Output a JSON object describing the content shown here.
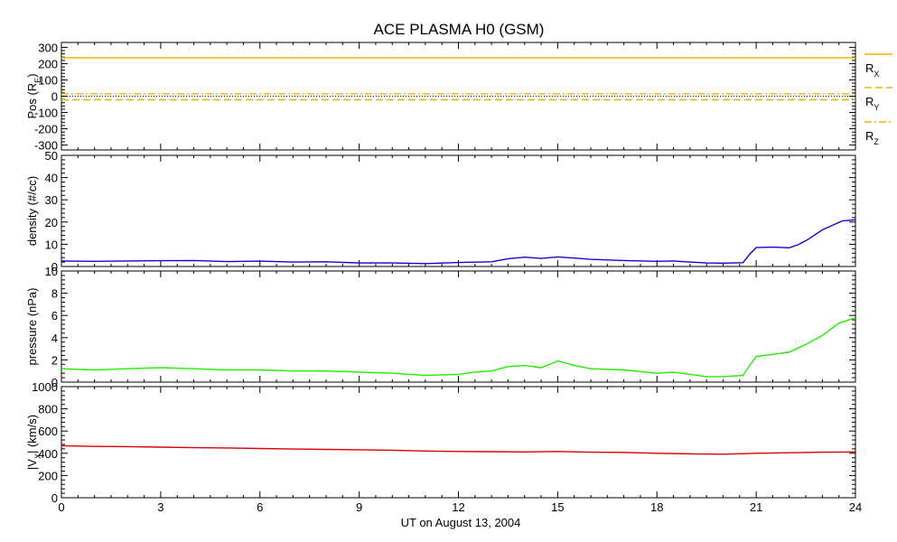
{
  "chart_data": {
    "type": "line",
    "title": "ACE PLASMA H0 (GSM)",
    "xlabel": "UT on August 13, 2004",
    "xlim": [
      0,
      24
    ],
    "xticks": [
      0,
      3,
      6,
      9,
      12,
      15,
      18,
      21,
      24
    ],
    "xtick_labels": [
      "0",
      "3",
      "6",
      "9",
      "12",
      "15",
      "18",
      "21",
      "24"
    ],
    "panels": [
      {
        "ylabel_main": "Pos (R",
        "ylabel_sub": "E",
        "ylabel_end": ")",
        "ylim": [
          -330,
          330
        ],
        "yticks": [
          300,
          200,
          100,
          0,
          -100,
          -200,
          -300
        ],
        "ytick_labels": [
          "300",
          "200",
          "100",
          "0",
          "-100",
          "-200",
          "-300"
        ],
        "zero_line": true,
        "series": [
          {
            "name": "R",
            "sub": "X",
            "color": "#f0b000",
            "dash": "",
            "x": [
              0,
              24
            ],
            "values": [
              236,
              236
            ]
          },
          {
            "name": "R",
            "sub": "Y",
            "color": "#f0b000",
            "dash": "8,4",
            "x": [
              0,
              24
            ],
            "values": [
              -22,
              -22
            ]
          },
          {
            "name": "R",
            "sub": "Z",
            "color": "#f0b000",
            "dash": "8,3,2,3",
            "x": [
              0,
              24
            ],
            "values": [
              15,
              15
            ]
          }
        ]
      },
      {
        "ylabel_main": "density (#/cc)",
        "ylim": [
          0,
          50
        ],
        "yticks": [
          0,
          10,
          20,
          30,
          40,
          50
        ],
        "ytick_labels": [
          "0",
          "10",
          "20",
          "30",
          "40",
          "50"
        ],
        "series": [
          {
            "color": "#1f00cc",
            "x": [
              0,
              1,
              2,
              3,
              4,
              5,
              6,
              7,
              8,
              9,
              10,
              11,
              12,
              13,
              13.5,
              14,
              14.5,
              15,
              15.5,
              16,
              17,
              18,
              18.5,
              19,
              19.5,
              20,
              20.6,
              20.8,
              21,
              21.5,
              22,
              22.3,
              22.6,
              23,
              23.3,
              23.6,
              24
            ],
            "values": [
              2.5,
              2.3,
              2.5,
              2.6,
              2.7,
              2.2,
              2.4,
              2.0,
              2.1,
              1.6,
              1.6,
              1.3,
              1.8,
              2.1,
              3.5,
              4.2,
              3.6,
              4.3,
              3.8,
              3.2,
              2.7,
              2.3,
              2.5,
              2.0,
              1.6,
              1.5,
              1.7,
              5.5,
              8.5,
              8.7,
              8.4,
              10.0,
              12.5,
              16.5,
              18.5,
              20.5,
              21.0
            ]
          }
        ]
      },
      {
        "ylabel_main": "pressure (nPa)",
        "ylim": [
          0,
          10
        ],
        "yticks": [
          0,
          2,
          4,
          6,
          8,
          10
        ],
        "ytick_labels": [
          "0",
          "2",
          "4",
          "6",
          "8",
          "10"
        ],
        "series": [
          {
            "color": "#22ee00",
            "x": [
              0,
              1,
              2,
              3,
              4,
              5,
              6,
              7,
              8,
              9,
              10,
              11,
              12,
              12.5,
              13,
              13.5,
              14,
              14.5,
              15,
              15.5,
              16,
              17,
              18,
              18.5,
              19,
              19.5,
              20,
              20.6,
              20.8,
              21,
              21.5,
              22,
              22.5,
              23,
              23.5,
              24
            ],
            "values": [
              1.2,
              1.1,
              1.2,
              1.3,
              1.2,
              1.1,
              1.1,
              1.0,
              1.0,
              0.9,
              0.8,
              0.6,
              0.7,
              0.9,
              1.0,
              1.4,
              1.5,
              1.3,
              1.9,
              1.5,
              1.2,
              1.1,
              0.8,
              0.9,
              0.7,
              0.5,
              0.5,
              0.6,
              1.5,
              2.3,
              2.5,
              2.7,
              3.4,
              4.2,
              5.3,
              5.8
            ]
          }
        ]
      },
      {
        "ylabel_main": "|V",
        "ylabel_sub": "X",
        "ylabel_end": "| (km/s)",
        "ylim": [
          0,
          1000
        ],
        "yticks": [
          0,
          200,
          400,
          600,
          800,
          1000
        ],
        "ytick_labels": [
          "0",
          "200",
          "400",
          "600",
          "800",
          "1000"
        ],
        "series": [
          {
            "color": "#dd0000",
            "x": [
              0,
              1,
              2,
              3,
              4,
              5,
              6,
              7,
              8,
              9,
              10,
              11,
              12,
              13,
              14,
              15,
              16,
              17,
              18,
              19,
              20,
              21,
              22,
              23,
              24
            ],
            "values": [
              468,
              462,
              460,
              455,
              450,
              448,
              443,
              438,
              435,
              432,
              428,
              420,
              416,
              415,
              412,
              416,
              410,
              408,
              400,
              395,
              392,
              400,
              405,
              410,
              412
            ]
          }
        ]
      }
    ]
  }
}
